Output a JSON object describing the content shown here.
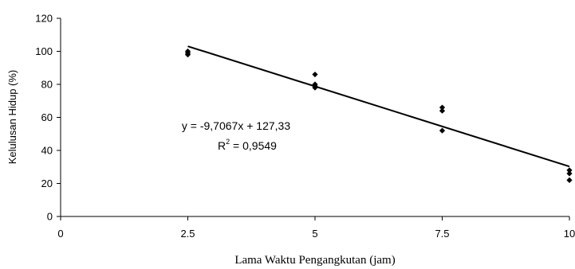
{
  "chart_data": {
    "type": "scatter",
    "xlabel": "Lama Waktu Pengangkutan (jam)",
    "ylabel": "Kelulusan Hidup (%)",
    "xlim": [
      0,
      10
    ],
    "ylim": [
      0,
      120
    ],
    "x_ticks": [
      0,
      2.5,
      5,
      7.5,
      10
    ],
    "x_tick_labels": [
      "0",
      "2.5",
      "5",
      "7.5",
      "10"
    ],
    "y_ticks": [
      0,
      20,
      40,
      60,
      80,
      100,
      120
    ],
    "y_tick_labels": [
      "0",
      "20",
      "40",
      "60",
      "80",
      "100",
      "120"
    ],
    "grid": false,
    "marker": "diamond",
    "points": [
      {
        "x": 2.5,
        "y": 100
      },
      {
        "x": 2.5,
        "y": 99
      },
      {
        "x": 2.5,
        "y": 98
      },
      {
        "x": 5,
        "y": 86
      },
      {
        "x": 5,
        "y": 80
      },
      {
        "x": 5,
        "y": 79
      },
      {
        "x": 5,
        "y": 78
      },
      {
        "x": 7.5,
        "y": 66
      },
      {
        "x": 7.5,
        "y": 64
      },
      {
        "x": 7.5,
        "y": 52
      },
      {
        "x": 10,
        "y": 28
      },
      {
        "x": 10,
        "y": 26
      },
      {
        "x": 10,
        "y": 22
      }
    ],
    "trendline": {
      "type": "linear",
      "slope": -9.7067,
      "intercept": 127.33,
      "x_start": 2.5,
      "x_end": 10,
      "equation": "y = -9,7067x + 127,33",
      "r2_prefix": "R",
      "r2_sup": "2",
      "r2_suffix": " = 0,9549"
    }
  }
}
